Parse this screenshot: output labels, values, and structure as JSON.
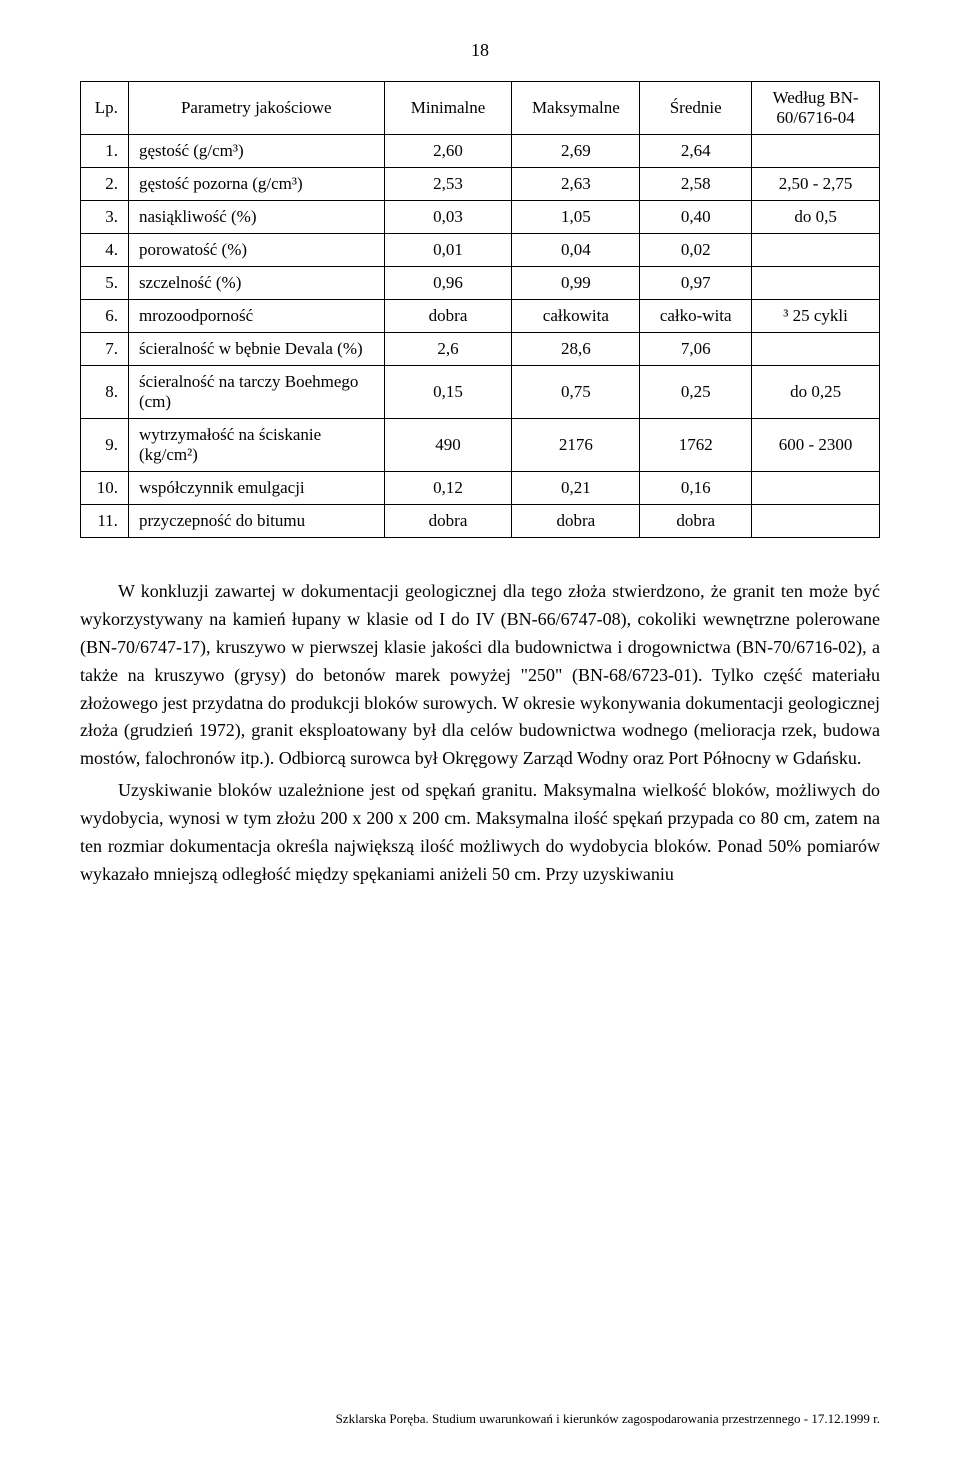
{
  "page_number": "18",
  "table": {
    "headers": [
      "Lp.",
      "Parametry jakościowe",
      "Minimalne",
      "Maksymalne",
      "Średnie",
      "Według BN-60/6716-04"
    ],
    "rows": [
      {
        "lp": "1.",
        "param": "gęstość (g/cm³)",
        "min": "2,60",
        "max": "2,69",
        "avg": "2,64",
        "std": ""
      },
      {
        "lp": "2.",
        "param": "gęstość pozorna (g/cm³)",
        "min": "2,53",
        "max": "2,63",
        "avg": "2,58",
        "std": "2,50 - 2,75"
      },
      {
        "lp": "3.",
        "param": "nasiąkliwość (%)",
        "min": "0,03",
        "max": "1,05",
        "avg": "0,40",
        "std": "do 0,5"
      },
      {
        "lp": "4.",
        "param": "porowatość (%)",
        "min": "0,01",
        "max": "0,04",
        "avg": "0,02",
        "std": ""
      },
      {
        "lp": "5.",
        "param": "szczelność (%)",
        "min": "0,96",
        "max": "0,99",
        "avg": "0,97",
        "std": ""
      },
      {
        "lp": "6.",
        "param": "mrozoodporność",
        "min": "dobra",
        "max": "całkowita",
        "avg": "całko-wita",
        "std": "³ 25 cykli"
      },
      {
        "lp": "7.",
        "param": "ścieralność w bębnie Devala (%)",
        "min": "2,6",
        "max": "28,6",
        "avg": "7,06",
        "std": ""
      },
      {
        "lp": "8.",
        "param": "ścieralność na tarczy Boehmego (cm)",
        "min": "0,15",
        "max": "0,75",
        "avg": "0,25",
        "std": "do 0,25"
      },
      {
        "lp": "9.",
        "param": "wytrzymałość na ściskanie (kg/cm²)",
        "min": "490",
        "max": "2176",
        "avg": "1762",
        "std": "600 - 2300"
      },
      {
        "lp": "10.",
        "param": "współczynnik emulgacji",
        "min": "0,12",
        "max": "0,21",
        "avg": "0,16",
        "std": ""
      },
      {
        "lp": "11.",
        "param": "przyczepność do bitumu",
        "min": "dobra",
        "max": "dobra",
        "avg": "dobra",
        "std": ""
      }
    ]
  },
  "paragraphs": [
    "W konkluzji zawartej w dokumentacji geologicznej dla tego złoża stwierdzono, że granit ten może być wykorzystywany na kamień łupany w klasie od I do IV (BN-66/6747-08), cokoliki wewnętrzne polerowane (BN-70/6747-17), kruszywo w pierwszej klasie jakości dla budownictwa i drogownictwa (BN-70/6716-02), a także na kruszywo (grysy) do betonów marek powyżej \"250\" (BN-68/6723-01). Tylko część materiału złożowego jest przydatna do produkcji bloków surowych. W okresie wykonywania dokumentacji geologicznej złoża (grudzień 1972), granit eksploatowany był dla celów budownictwa wodnego (melioracja rzek, budowa mostów, falochronów itp.). Odbiorcą surowca był Okręgowy Zarząd Wodny oraz Port Północny w Gdańsku.",
    "Uzyskiwanie bloków uzależnione jest od spękań granitu. Maksymalna wielkość bloków, możliwych do wydobycia, wynosi w tym złożu 200 x 200 x 200 cm. Maksymalna ilość spękań przypada co 80 cm, zatem na ten rozmiar dokumentacja określa największą ilość możliwych do wydobycia bloków. Ponad 50% pomiarów wykazało mniejszą odległość między spękaniami aniżeli 50 cm. Przy uzyskiwaniu"
  ],
  "footer": "Szklarska Poręba. Studium uwarunkowań i kierunków zagospodarowania przestrzennego - 17.12.1999 r."
}
